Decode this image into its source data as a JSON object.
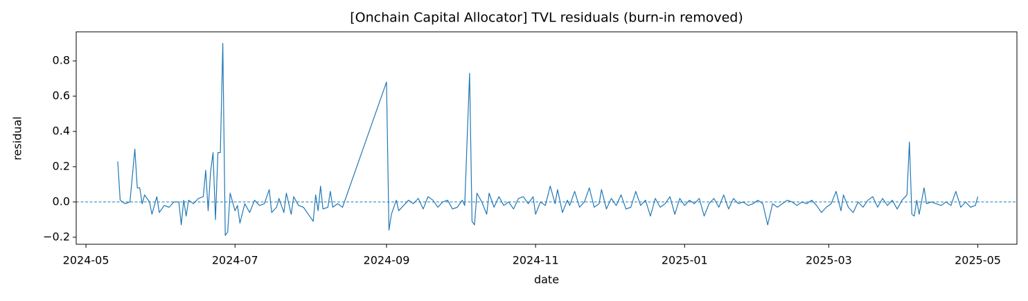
{
  "chart_data": {
    "type": "line",
    "title": "[Onchain Capital Allocator] TVL residuals (burn-in removed)",
    "xlabel": "date",
    "ylabel": "residual",
    "color": "#1f77b4",
    "reference_line": 0,
    "xlim": [
      "2024-04-27",
      "2025-05-17"
    ],
    "xticks": [
      {
        "value": "2024-05-01",
        "label": "2024-05"
      },
      {
        "value": "2024-07-01",
        "label": "2024-07"
      },
      {
        "value": "2024-09-01",
        "label": "2024-09"
      },
      {
        "value": "2024-11-01",
        "label": "2024-11"
      },
      {
        "value": "2025-01-01",
        "label": "2025-01"
      },
      {
        "value": "2025-03-01",
        "label": "2025-03"
      },
      {
        "value": "2025-05-01",
        "label": "2025-05"
      }
    ],
    "ylim": [
      -0.24,
      0.965
    ],
    "yticks": [
      {
        "value": -0.2,
        "label": "−0.2"
      },
      {
        "value": 0,
        "label": "0.0"
      },
      {
        "value": 0.2,
        "label": "0.2"
      },
      {
        "value": 0.4,
        "label": "0.4"
      },
      {
        "value": 0.6,
        "label": "0.6"
      },
      {
        "value": 0.8,
        "label": "0.8"
      }
    ],
    "x": [
      "2024-05-14",
      "2024-05-15",
      "2024-05-17",
      "2024-05-19",
      "2024-05-21",
      "2024-05-22",
      "2024-05-23",
      "2024-05-24",
      "2024-05-25",
      "2024-05-27",
      "2024-05-28",
      "2024-05-30",
      "2024-05-31",
      "2024-06-02",
      "2024-06-04",
      "2024-06-06",
      "2024-06-08",
      "2024-06-09",
      "2024-06-10",
      "2024-06-11",
      "2024-06-12",
      "2024-06-14",
      "2024-06-16",
      "2024-06-18",
      "2024-06-19",
      "2024-06-20",
      "2024-06-21",
      "2024-06-22",
      "2024-06-23",
      "2024-06-24",
      "2024-06-25",
      "2024-06-26",
      "2024-06-27",
      "2024-06-28",
      "2024-06-29",
      "2024-07-01",
      "2024-07-02",
      "2024-07-03",
      "2024-07-05",
      "2024-07-07",
      "2024-07-09",
      "2024-07-11",
      "2024-07-13",
      "2024-07-15",
      "2024-07-16",
      "2024-07-18",
      "2024-07-19",
      "2024-07-21",
      "2024-07-22",
      "2024-07-24",
      "2024-07-25",
      "2024-07-27",
      "2024-07-29",
      "2024-07-31",
      "2024-08-02",
      "2024-08-03",
      "2024-08-04",
      "2024-08-05",
      "2024-08-06",
      "2024-08-08",
      "2024-08-09",
      "2024-08-10",
      "2024-08-12",
      "2024-08-14",
      "2024-09-01",
      "2024-09-02",
      "2024-09-03",
      "2024-09-05",
      "2024-09-06",
      "2024-09-08",
      "2024-09-10",
      "2024-09-12",
      "2024-09-14",
      "2024-09-16",
      "2024-09-18",
      "2024-09-20",
      "2024-09-22",
      "2024-09-24",
      "2024-09-26",
      "2024-09-28",
      "2024-09-30",
      "2024-10-02",
      "2024-10-03",
      "2024-10-05",
      "2024-10-06",
      "2024-10-07",
      "2024-10-08",
      "2024-10-10",
      "2024-10-12",
      "2024-10-13",
      "2024-10-15",
      "2024-10-17",
      "2024-10-19",
      "2024-10-21",
      "2024-10-23",
      "2024-10-25",
      "2024-10-27",
      "2024-10-29",
      "2024-10-31",
      "2024-11-01",
      "2024-11-03",
      "2024-11-05",
      "2024-11-07",
      "2024-11-09",
      "2024-11-10",
      "2024-11-12",
      "2024-11-14",
      "2024-11-15",
      "2024-11-17",
      "2024-11-19",
      "2024-11-21",
      "2024-11-23",
      "2024-11-25",
      "2024-11-27",
      "2024-11-28",
      "2024-11-30",
      "2024-12-02",
      "2024-12-04",
      "2024-12-06",
      "2024-12-08",
      "2024-12-10",
      "2024-12-12",
      "2024-12-14",
      "2024-12-16",
      "2024-12-18",
      "2024-12-20",
      "2024-12-22",
      "2024-12-24",
      "2024-12-26",
      "2024-12-28",
      "2024-12-30",
      "2025-01-01",
      "2025-01-03",
      "2025-01-05",
      "2025-01-07",
      "2025-01-09",
      "2025-01-11",
      "2025-01-13",
      "2025-01-15",
      "2025-01-17",
      "2025-01-19",
      "2025-01-21",
      "2025-01-23",
      "2025-01-25",
      "2025-01-27",
      "2025-01-29",
      "2025-01-31",
      "2025-02-02",
      "2025-02-04",
      "2025-02-06",
      "2025-02-08",
      "2025-02-10",
      "2025-02-12",
      "2025-02-14",
      "2025-02-16",
      "2025-02-18",
      "2025-02-20",
      "2025-02-22",
      "2025-02-24",
      "2025-02-26",
      "2025-02-28",
      "2025-03-02",
      "2025-03-04",
      "2025-03-06",
      "2025-03-07",
      "2025-03-09",
      "2025-03-11",
      "2025-03-13",
      "2025-03-15",
      "2025-03-17",
      "2025-03-19",
      "2025-03-21",
      "2025-03-23",
      "2025-03-25",
      "2025-03-27",
      "2025-03-29",
      "2025-03-31",
      "2025-04-02",
      "2025-04-03",
      "2025-04-04",
      "2025-04-05",
      "2025-04-06",
      "2025-04-07",
      "2025-04-09",
      "2025-04-10",
      "2025-04-12",
      "2025-04-14",
      "2025-04-16",
      "2025-04-18",
      "2025-04-20",
      "2025-04-22",
      "2025-04-24",
      "2025-04-26",
      "2025-04-28",
      "2025-04-30",
      "2025-05-01"
    ],
    "values": [
      0.23,
      0.01,
      -0.01,
      0.0,
      0.3,
      0.08,
      0.08,
      -0.01,
      0.04,
      0.0,
      -0.07,
      0.03,
      -0.06,
      -0.02,
      -0.03,
      0.0,
      0.0,
      -0.13,
      0.01,
      -0.08,
      0.01,
      -0.01,
      0.02,
      0.03,
      0.18,
      -0.05,
      0.17,
      0.28,
      -0.1,
      0.28,
      0.28,
      0.9,
      -0.19,
      -0.17,
      0.05,
      -0.05,
      -0.02,
      -0.12,
      -0.01,
      -0.06,
      0.01,
      -0.02,
      -0.01,
      0.07,
      -0.06,
      -0.03,
      0.02,
      -0.06,
      0.05,
      -0.07,
      0.03,
      -0.02,
      -0.03,
      -0.07,
      -0.11,
      0.04,
      -0.05,
      0.09,
      -0.04,
      -0.03,
      0.06,
      -0.03,
      -0.01,
      -0.03,
      0.68,
      -0.16,
      -0.07,
      0.01,
      -0.05,
      -0.02,
      0.01,
      -0.01,
      0.02,
      -0.04,
      0.03,
      0.01,
      -0.03,
      0.0,
      0.01,
      -0.04,
      -0.03,
      0.01,
      -0.02,
      0.73,
      -0.11,
      -0.13,
      0.05,
      0.0,
      -0.07,
      0.05,
      -0.03,
      0.03,
      -0.02,
      0.0,
      -0.04,
      0.02,
      0.03,
      -0.01,
      0.03,
      -0.07,
      0.0,
      -0.02,
      0.09,
      -0.01,
      0.07,
      -0.06,
      0.01,
      -0.02,
      0.06,
      -0.03,
      0.0,
      0.08,
      -0.03,
      -0.01,
      0.07,
      -0.04,
      0.02,
      -0.02,
      0.04,
      -0.04,
      -0.03,
      0.06,
      -0.02,
      0.01,
      -0.08,
      0.02,
      -0.03,
      -0.01,
      0.03,
      -0.07,
      0.02,
      -0.02,
      0.01,
      -0.01,
      0.02,
      -0.08,
      -0.01,
      0.02,
      -0.03,
      0.04,
      -0.04,
      0.02,
      -0.01,
      0.0,
      -0.02,
      -0.01,
      0.01,
      -0.01,
      -0.13,
      -0.01,
      -0.03,
      -0.01,
      0.01,
      0.0,
      -0.02,
      0.0,
      -0.01,
      0.01,
      -0.02,
      -0.06,
      -0.03,
      -0.01,
      0.06,
      -0.05,
      0.04,
      -0.03,
      -0.06,
      0.0,
      -0.03,
      0.01,
      0.03,
      -0.03,
      0.02,
      -0.02,
      0.01,
      -0.04,
      0.01,
      0.04,
      0.34,
      -0.07,
      -0.08,
      0.01,
      -0.07,
      0.08,
      -0.01,
      0.0,
      -0.01,
      -0.02,
      0.0,
      -0.02,
      0.06,
      -0.03,
      0.0,
      -0.03,
      -0.02,
      0.03
    ]
  }
}
